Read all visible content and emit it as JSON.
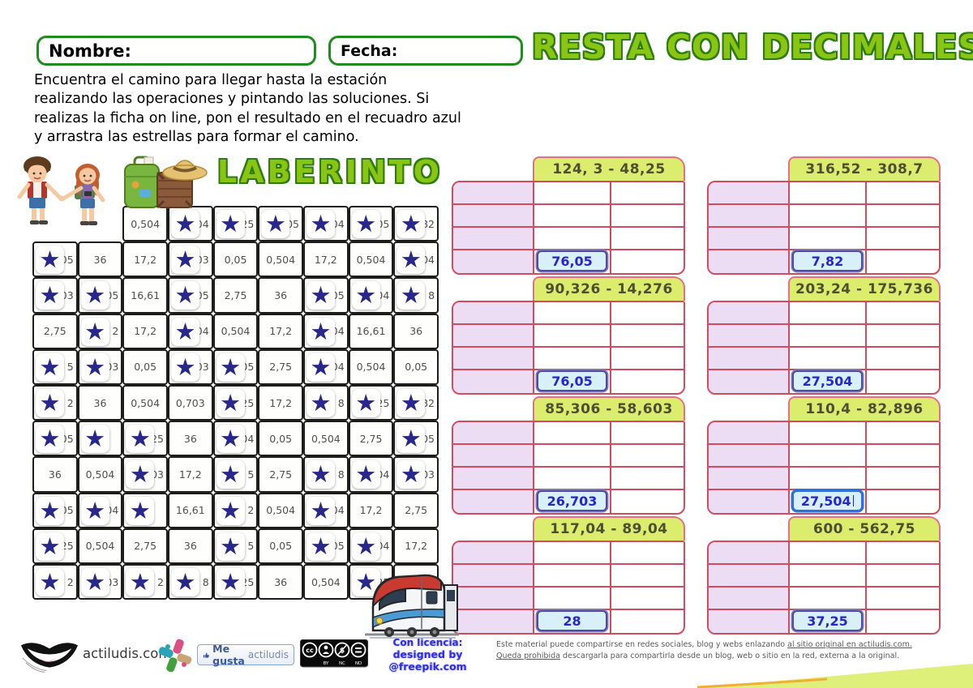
{
  "header": {
    "nombre_label": "Nombre:",
    "fecha_label": "Fecha:",
    "title": "RESTA CON DECIMALES"
  },
  "instructions": "Encuentra el camino para llegar hasta la estación realizando las operaciones y pintando las soluciones. Si realizas la ficha on line, pon el resultado en el recuadro azul y arrastra las estrellas para formar el camino.",
  "maze": {
    "title": "LABERINTO",
    "star_glyph": "★",
    "rows": [
      {
        "offset": 2,
        "cells": [
          {
            "t": "0,504"
          },
          {
            "t": "504",
            "star": true
          },
          {
            "t": "25",
            "star": true
          },
          {
            "t": "05",
            "star": true
          },
          {
            "t": "504",
            "star": true
          },
          {
            "t": "05",
            "star": true
          },
          {
            "t": "82",
            "star": true
          }
        ]
      },
      {
        "cells": [
          {
            "t": "05",
            "star": true
          },
          {
            "t": "36"
          },
          {
            "t": "17,2"
          },
          {
            "t": "703",
            "star": true
          },
          {
            "t": "0,05"
          },
          {
            "t": "0,504"
          },
          {
            "t": "17,2"
          },
          {
            "t": "0,504"
          },
          {
            "t": "504",
            "star": true
          }
        ]
      },
      {
        "cells": [
          {
            "t": "03",
            "star": true
          },
          {
            "t": "05",
            "star": true
          },
          {
            "t": "16,61"
          },
          {
            "t": "05",
            "star": true
          },
          {
            "t": "2,75"
          },
          {
            "t": "36"
          },
          {
            "t": ",05",
            "star": true
          },
          {
            "t": "504",
            "star": true
          },
          {
            "t": "8",
            "star": true
          }
        ]
      },
      {
        "cells": [
          {
            "t": "2,75"
          },
          {
            "t": "2",
            "star": true
          },
          {
            "t": "17,2"
          },
          {
            "t": "504",
            "star": true
          },
          {
            "t": "0,504"
          },
          {
            "t": "17,2"
          },
          {
            "t": "504",
            "star": true
          },
          {
            "t": "16,61"
          },
          {
            "t": "36"
          }
        ]
      },
      {
        "cells": [
          {
            "t": "5",
            "star": true
          },
          {
            "t": "703",
            "star": true
          },
          {
            "t": "0,05"
          },
          {
            "t": "03",
            "star": true
          },
          {
            "t": "05",
            "star": true
          },
          {
            "t": "2,75"
          },
          {
            "t": "504",
            "star": true
          },
          {
            "t": "0,504"
          },
          {
            "t": "0,05"
          }
        ]
      },
      {
        "cells": [
          {
            "t": "2",
            "star": true
          },
          {
            "t": "36"
          },
          {
            "t": "0,504"
          },
          {
            "t": "0,703"
          },
          {
            "t": "25",
            "star": true
          },
          {
            "t": "17,2"
          },
          {
            "t": "8",
            "star": true
          },
          {
            "t": "25",
            "star": true
          },
          {
            "t": "82",
            "star": true
          }
        ]
      },
      {
        "cells": [
          {
            "t": "05",
            "star": true
          },
          {
            "t": "",
            "star": true
          },
          {
            "t": "25",
            "star": true
          },
          {
            "t": "36"
          },
          {
            "t": "04",
            "star": true
          },
          {
            "t": "0,05"
          },
          {
            "t": "0,504"
          },
          {
            "t": "2,75"
          },
          {
            "t": ",05",
            "star": true
          }
        ]
      },
      {
        "cells": [
          {
            "t": "36"
          },
          {
            "t": "0,504"
          },
          {
            "t": "03",
            "star": true
          },
          {
            "t": "17,2"
          },
          {
            "t": "5",
            "star": true
          },
          {
            "t": "2,75"
          },
          {
            "t": "8",
            "star": true
          },
          {
            "t": "504",
            "star": true
          },
          {
            "t": "703",
            "star": true
          }
        ]
      },
      {
        "cells": [
          {
            "t": ",05",
            "star": true
          },
          {
            "t": "04",
            "star": true
          },
          {
            "t": "",
            "star": true
          },
          {
            "t": "16,61"
          },
          {
            "t": "2",
            "star": true
          },
          {
            "t": "0,504"
          },
          {
            "t": "504",
            "star": true
          },
          {
            "t": "17,2"
          },
          {
            "t": "2,75"
          }
        ]
      },
      {
        "cells": [
          {
            "t": "25",
            "star": true
          },
          {
            "t": "0,504"
          },
          {
            "t": "2,75"
          },
          {
            "t": "36"
          },
          {
            "t": "5",
            "star": true
          },
          {
            "t": "0,05"
          },
          {
            "t": "05",
            "star": true
          },
          {
            "t": "04",
            "star": true
          },
          {
            "t": "17,2"
          }
        ]
      },
      {
        "cells": [
          {
            "t": "2",
            "star": true
          },
          {
            "t": "703",
            "star": true
          },
          {
            "t": "2",
            "star": true
          },
          {
            "t": "8",
            "star": true
          },
          {
            "t": "25",
            "star": true
          },
          {
            "t": "36"
          },
          {
            "t": "0,504"
          },
          {
            "t": "25",
            "star": true
          },
          {
            "t": ""
          }
        ]
      }
    ]
  },
  "problems": [
    {
      "expression": "124, 3 - 48,25",
      "answer": "76,05",
      "focused": false
    },
    {
      "expression": "316,52 - 308,7",
      "answer": "7,82",
      "focused": false
    },
    {
      "expression": "90,326 - 14,276",
      "answer": "76,05",
      "focused": false
    },
    {
      "expression": "203,24 - 175,736",
      "answer": "27,504",
      "focused": false
    },
    {
      "expression": "85,306 - 58,603",
      "answer": "26,703",
      "focused": false
    },
    {
      "expression": "110,4 - 82,896",
      "answer": "27,504",
      "focused": true
    },
    {
      "expression": "117,04 - 89,04",
      "answer": "28",
      "focused": false
    },
    {
      "expression": "600 - 562,75",
      "answer": "37,25",
      "focused": false
    }
  ],
  "footer": {
    "site": "actiludis.com",
    "like_button": {
      "label_bold": "Me gusta",
      "label_rest": "actiludis"
    },
    "cc_labels": [
      "BY",
      "NC",
      "ND"
    ],
    "license_line1": "Con licencia:",
    "license_line2": "designed by @freepik.com",
    "disclaimer_pre": "Este material puede compartirse en redes sociales, blog y webs enlazando ",
    "disclaimer_link": "al sitio original en actiludis.com. Queda prohibida",
    "disclaimer_post": " descargarla para compartirla desde un blog, web o sitio en la red, externa a la original."
  },
  "colors": {
    "accent_green": "#8bc514",
    "outline_green": "#2c7c12",
    "field_border_green": "#1f8c1f",
    "card_header_bg": "#dcec6d",
    "card_border": "#d24b5e",
    "lavender_fill": "#ecdcf4",
    "answer_box_bg": "#d8f0fa",
    "answer_text_blue": "#2626cc",
    "star_blue": "#27278c"
  }
}
